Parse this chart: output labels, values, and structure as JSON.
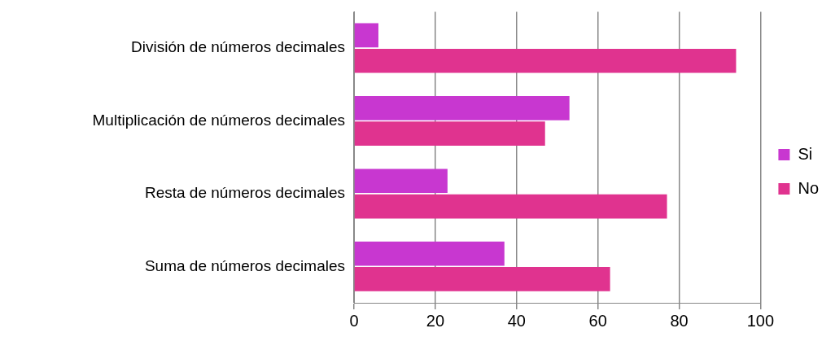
{
  "chart_data": {
    "type": "bar",
    "orientation": "horizontal",
    "categories": [
      "División de números decimales",
      "Multiplicación de números decimales",
      "Resta de números decimales",
      "Suma de números decimales"
    ],
    "series": [
      {
        "name": "Si",
        "color": "#c837d0",
        "values": [
          6,
          53,
          23,
          37
        ]
      },
      {
        "name": "No",
        "color": "#e0338f",
        "values": [
          94,
          47,
          77,
          63
        ]
      }
    ],
    "xlim": [
      0,
      100
    ],
    "xticks": [
      0,
      20,
      40,
      60,
      80,
      100
    ],
    "grid": "x",
    "legend": "right"
  }
}
